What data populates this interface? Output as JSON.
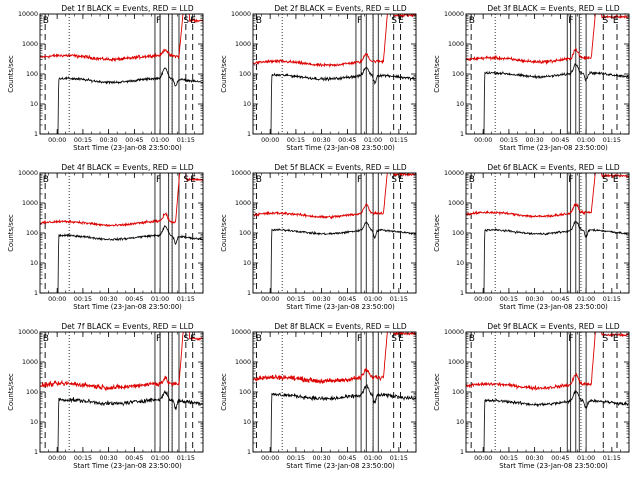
{
  "chart_data": {
    "type": "line",
    "layout": {
      "rows": 3,
      "cols": 3
    },
    "ylabel": "Counts/sec",
    "xlabel": "Start Time (23-Jan-08 23:50:00)",
    "yscale": "log",
    "ylim": [
      1,
      10000
    ],
    "y_ticks": [
      1,
      10,
      100,
      1000,
      10000
    ],
    "y_tick_labels": [
      "1",
      "10",
      "100",
      "1000",
      "10000"
    ],
    "x_range_minutes": [
      0,
      95
    ],
    "x_ticks_minutes": [
      10,
      25,
      40,
      55,
      70,
      85
    ],
    "x_tick_labels": [
      "00:00",
      "00:15",
      "00:30",
      "00:45",
      "01:00",
      "01:15"
    ],
    "series_legend": {
      "black": "Events",
      "red": "LLD"
    },
    "colors": {
      "events": "#000000",
      "lld": "#dd0000"
    },
    "flags": [
      "B",
      "F",
      "S",
      "E"
    ],
    "panels": [
      {
        "title": "Det 1f BLACK = Events, RED = LLD",
        "x_solid": [
          67,
          70,
          75,
          77,
          81
        ],
        "x_dashed": [
          3,
          85,
          89
        ],
        "x_dotted": [
          17,
          77,
          95
        ],
        "flag_pos": {
          "B": 1,
          "F": 67,
          "S": 83,
          "E": 87
        },
        "events": {
          "base": 62,
          "noise": 0.06,
          "peak_t": 73,
          "peak_h": 2.2,
          "dip_t": 79,
          "start": 11
        },
        "lld": {
          "base": 360,
          "noise": 0.08,
          "peak_t": 73,
          "peak_h": 1.6,
          "rise_t": 81,
          "rise_to": 13000,
          "tail": 6000
        }
      },
      {
        "title": "Det 2f BLACK = Events, RED = LLD",
        "x_solid": [
          60,
          63,
          66,
          70,
          73
        ],
        "x_dashed": [
          2,
          82,
          86
        ],
        "x_dotted": [
          17,
          70,
          95
        ],
        "flag_pos": {
          "B": 1,
          "F": 60,
          "S": 80,
          "E": 84
        },
        "events": {
          "base": 80,
          "noise": 0.07,
          "peak_t": 66,
          "peak_h": 1.8,
          "dip_t": 71,
          "start": 11
        },
        "lld": {
          "base": 230,
          "noise": 0.07,
          "peak_t": 66,
          "peak_h": 1.8,
          "rise_t": 76,
          "rise_to": 14000,
          "tail": 9000
        }
      },
      {
        "title": "Det 3f BLACK = Events, RED = LLD",
        "x_solid": [
          59,
          61,
          64,
          66,
          70
        ],
        "x_dashed": [
          3,
          80,
          88
        ],
        "x_dotted": [
          17,
          67,
          95
        ],
        "flag_pos": {
          "B": 1,
          "F": 59,
          "S": 79,
          "E": 85
        },
        "events": {
          "base": 95,
          "noise": 0.06,
          "peak_t": 64,
          "peak_h": 2.0,
          "dip_t": 70,
          "start": 11
        },
        "lld": {
          "base": 300,
          "noise": 0.08,
          "peak_t": 64,
          "peak_h": 2.0,
          "rise_t": 73,
          "rise_to": 12000,
          "tail": 8000
        }
      },
      {
        "title": "Det 4f BLACK = Events, RED = LLD",
        "x_solid": [
          67,
          70,
          75,
          77,
          81
        ],
        "x_dashed": [
          3,
          85,
          89
        ],
        "x_dotted": [
          17,
          77,
          95
        ],
        "flag_pos": {
          "B": 1,
          "F": 67,
          "S": 83,
          "E": 87
        },
        "events": {
          "base": 72,
          "noise": 0.05,
          "peak_t": 73,
          "peak_h": 2.0,
          "dip_t": 79,
          "start": 11
        },
        "lld": {
          "base": 210,
          "noise": 0.06,
          "peak_t": 73,
          "peak_h": 1.8,
          "rise_t": 79,
          "rise_to": 12000,
          "tail": 6000
        }
      },
      {
        "title": "Det 5f BLACK = Events, RED = LLD",
        "x_solid": [
          60,
          63,
          66,
          70,
          73
        ],
        "x_dashed": [
          2,
          82,
          86
        ],
        "x_dotted": [
          17,
          70,
          95
        ],
        "flag_pos": {
          "B": 1,
          "F": 60,
          "S": 80,
          "E": 84
        },
        "events": {
          "base": 110,
          "noise": 0.05,
          "peak_t": 66,
          "peak_h": 1.8,
          "dip_t": 71,
          "start": 11
        },
        "lld": {
          "base": 400,
          "noise": 0.06,
          "peak_t": 66,
          "peak_h": 2.0,
          "rise_t": 76,
          "rise_to": 14000,
          "tail": 9000
        }
      },
      {
        "title": "Det 6f BLACK = Events, RED = LLD",
        "x_solid": [
          59,
          61,
          64,
          66,
          70
        ],
        "x_dashed": [
          3,
          80,
          88
        ],
        "x_dotted": [
          17,
          67,
          95
        ],
        "flag_pos": {
          "B": 1,
          "F": 59,
          "S": 79,
          "E": 85
        },
        "events": {
          "base": 110,
          "noise": 0.05,
          "peak_t": 64,
          "peak_h": 2.0,
          "dip_t": 70,
          "start": 11
        },
        "lld": {
          "base": 420,
          "noise": 0.06,
          "peak_t": 64,
          "peak_h": 2.0,
          "rise_t": 73,
          "rise_to": 12000,
          "tail": 8000
        }
      },
      {
        "title": "Det 7f BLACK = Events, RED = LLD",
        "x_solid": [
          67,
          70,
          75,
          77,
          81
        ],
        "x_dashed": [
          3,
          85,
          89
        ],
        "x_dotted": [
          17,
          77,
          95
        ],
        "flag_pos": {
          "B": 1,
          "F": 67,
          "S": 83,
          "E": 87
        },
        "events": {
          "base": 48,
          "noise": 0.1,
          "peak_t": 73,
          "peak_h": 1.8,
          "dip_t": 79,
          "start": 11
        },
        "lld": {
          "base": 165,
          "noise": 0.12,
          "peak_t": 73,
          "peak_h": 1.5,
          "rise_t": 81,
          "rise_to": 12000,
          "tail": 6000
        }
      },
      {
        "title": "Det 8f BLACK = Events, RED = LLD",
        "x_solid": [
          60,
          63,
          66,
          70,
          73
        ],
        "x_dashed": [
          2,
          82,
          86
        ],
        "x_dotted": [
          17,
          70,
          95
        ],
        "flag_pos": {
          "B": 1,
          "F": 60,
          "S": 80,
          "E": 84
        },
        "events": {
          "base": 70,
          "noise": 0.1,
          "peak_t": 66,
          "peak_h": 2.0,
          "dip_t": 71,
          "start": 11
        },
        "lld": {
          "base": 270,
          "noise": 0.12,
          "peak_t": 66,
          "peak_h": 1.8,
          "rise_t": 76,
          "rise_to": 14000,
          "tail": 9000
        }
      },
      {
        "title": "Det 9f BLACK = Events, RED = LLD",
        "x_solid": [
          59,
          61,
          64,
          66,
          70
        ],
        "x_dashed": [
          3,
          80,
          88
        ],
        "x_dotted": [
          17,
          67,
          95
        ],
        "flag_pos": {
          "B": 1,
          "F": 59,
          "S": 79,
          "E": 85
        },
        "events": {
          "base": 45,
          "noise": 0.07,
          "peak_t": 64,
          "peak_h": 2.2,
          "dip_t": 70,
          "start": 11
        },
        "lld": {
          "base": 160,
          "noise": 0.08,
          "peak_t": 64,
          "peak_h": 2.2,
          "rise_t": 73,
          "rise_to": 12000,
          "tail": 8000
        }
      }
    ]
  }
}
